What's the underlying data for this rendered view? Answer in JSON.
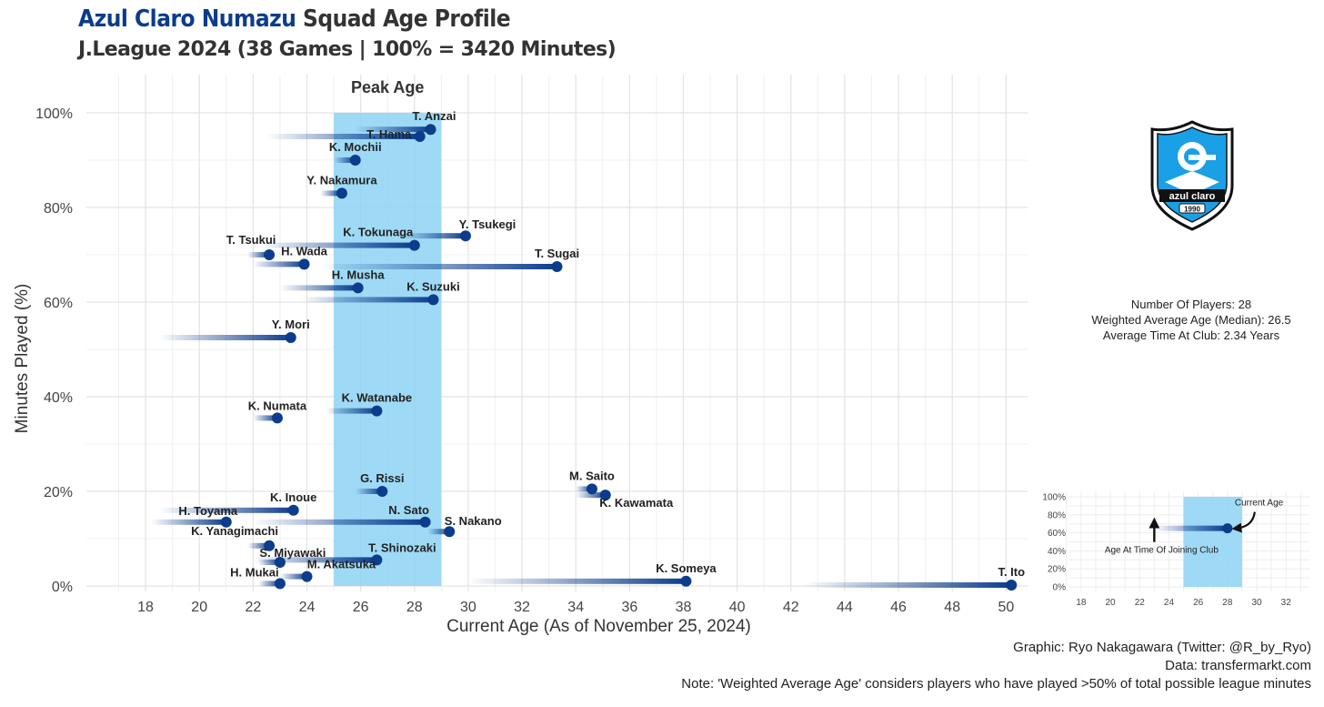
{
  "header": {
    "club": "Azul Claro Numazu",
    "title_rest": "Squad Age Profile",
    "subtitle": "J.League 2024 (38 Games | 100% = 3420 Minutes)"
  },
  "stats": {
    "players": "Number Of Players: 28",
    "weighted_age": "Weighted Average Age (Median): 26.5",
    "time_at_club": "Average Time At Club: 2.34 Years"
  },
  "logo": {
    "text": "azul claro",
    "year": "1990"
  },
  "captions": {
    "graphic": "Graphic: Ryo Nakagawara (Twitter: @R_by_Ryo)",
    "data": "Data: transfermarkt.com",
    "note": "Note: 'Weighted Average Age' considers players who have played >50% of total possible league minutes"
  },
  "colors": {
    "point": "#0c3c8c",
    "peak_band": "#8dd3f5",
    "grid": "#e3e3e3"
  },
  "chart_data": {
    "type": "scatter",
    "xlabel": "Current Age (As of November 25, 2024)",
    "ylabel": "Minutes Played (%)",
    "xlim": [
      15.8,
      50.8
    ],
    "ylim": [
      0,
      100
    ],
    "xticks": [
      18,
      20,
      22,
      24,
      26,
      28,
      30,
      32,
      34,
      36,
      38,
      40,
      42,
      44,
      46,
      48,
      50
    ],
    "yticks": [
      0,
      20,
      40,
      60,
      80,
      100
    ],
    "grid": true,
    "peak_age": {
      "label": "Peak Age",
      "from": 25,
      "to": 29
    },
    "players": [
      {
        "name": "T. Anzai",
        "age": 28.6,
        "join_age": 25.8,
        "minutes_pct": 96.5
      },
      {
        "name": "T. Hama",
        "age": 28.2,
        "join_age": 22.5,
        "minutes_pct": 95.0
      },
      {
        "name": "K. Mochii",
        "age": 25.8,
        "join_age": 25.0,
        "minutes_pct": 90.0
      },
      {
        "name": "Y. Nakamura",
        "age": 25.3,
        "join_age": 24.5,
        "minutes_pct": 83.0
      },
      {
        "name": "Y. Tsukegi",
        "age": 29.9,
        "join_age": 27.5,
        "minutes_pct": 74.0
      },
      {
        "name": "K. Tokunaga",
        "age": 28.0,
        "join_age": 22.2,
        "minutes_pct": 72.0
      },
      {
        "name": "T. Tsukui",
        "age": 22.6,
        "join_age": 21.8,
        "minutes_pct": 70.0
      },
      {
        "name": "H. Wada",
        "age": 23.9,
        "join_age": 22.0,
        "minutes_pct": 68.0
      },
      {
        "name": "T. Sugai",
        "age": 33.3,
        "join_age": 24.5,
        "minutes_pct": 67.5
      },
      {
        "name": "H. Musha",
        "age": 25.9,
        "join_age": 23.0,
        "minutes_pct": 63.0
      },
      {
        "name": "K. Suzuki",
        "age": 28.7,
        "join_age": 23.8,
        "minutes_pct": 60.5
      },
      {
        "name": "Y. Mori",
        "age": 23.4,
        "join_age": 18.5,
        "minutes_pct": 52.5
      },
      {
        "name": "K. Watanabe",
        "age": 26.6,
        "join_age": 24.7,
        "minutes_pct": 37.0
      },
      {
        "name": "K. Numata",
        "age": 22.9,
        "join_age": 22.0,
        "minutes_pct": 35.5
      },
      {
        "name": "M. Saito",
        "age": 34.6,
        "join_age": 34.0,
        "minutes_pct": 20.5
      },
      {
        "name": "K. Kawamata",
        "age": 35.1,
        "join_age": 34.0,
        "minutes_pct": 19.2
      },
      {
        "name": "G. Rissi",
        "age": 26.8,
        "join_age": 25.8,
        "minutes_pct": 20.0
      },
      {
        "name": "K. Inoue",
        "age": 23.5,
        "join_age": 18.5,
        "minutes_pct": 16.0
      },
      {
        "name": "H. Toyama",
        "age": 21.0,
        "join_age": 18.2,
        "minutes_pct": 13.5
      },
      {
        "name": "N. Sato",
        "age": 28.4,
        "join_age": 22.0,
        "minutes_pct": 13.5
      },
      {
        "name": "S. Nakano",
        "age": 29.3,
        "join_age": 28.5,
        "minutes_pct": 11.5
      },
      {
        "name": "K. Yanagimachi",
        "age": 22.6,
        "join_age": 21.8,
        "minutes_pct": 8.5
      },
      {
        "name": "S. Miyawaki",
        "age": 23.0,
        "join_age": 22.2,
        "minutes_pct": 5.0
      },
      {
        "name": "T. Shinozaki",
        "age": 26.6,
        "join_age": 22.0,
        "minutes_pct": 5.5
      },
      {
        "name": "H. Mukai",
        "age": 23.0,
        "join_age": 22.2,
        "minutes_pct": 0.5
      },
      {
        "name": "M. Akatsuka",
        "age": 24.0,
        "join_age": 23.0,
        "minutes_pct": 2.0
      },
      {
        "name": "K. Someya",
        "age": 38.1,
        "join_age": 30.0,
        "minutes_pct": 1.0
      },
      {
        "name": "T. Ito",
        "age": 50.2,
        "join_age": 42.5,
        "minutes_pct": 0.2
      }
    ],
    "inset": {
      "xticks": [
        18,
        20,
        22,
        24,
        26,
        28,
        30,
        32
      ],
      "yticks": [
        0,
        20,
        40,
        60,
        80,
        100
      ],
      "xlim": [
        17.2,
        33.6
      ],
      "ylim": [
        0,
        100
      ],
      "peak_age": {
        "from": 25,
        "to": 29
      },
      "example": {
        "join_age": 23.0,
        "age": 28.0,
        "minutes_pct": 65
      },
      "current_age_label": "Current Age",
      "join_label": "Age At Time Of Joining Club"
    }
  }
}
